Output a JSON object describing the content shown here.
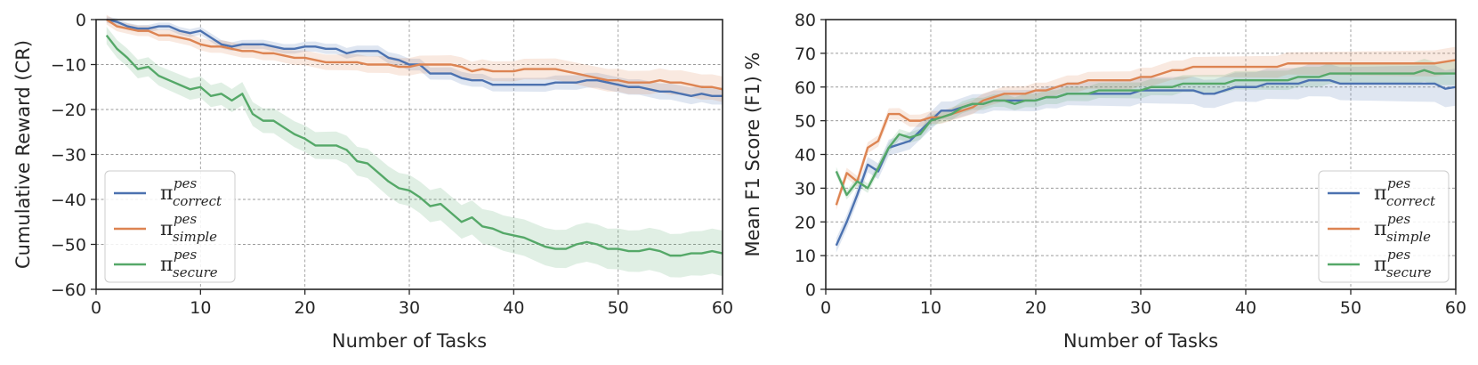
{
  "chart_data": [
    {
      "type": "line",
      "title": "",
      "xlabel": "Number of Tasks",
      "ylabel": "Cumulative Reward (CR)",
      "xlim": [
        0,
        60
      ],
      "ylim": [
        -60,
        0
      ],
      "xticks": [
        "0",
        "10",
        "20",
        "30",
        "40",
        "50",
        "60"
      ],
      "yticks": [
        "0",
        "−10",
        "−20",
        "−30",
        "−40",
        "−50",
        "−60"
      ],
      "grid": true,
      "legend_position": "lower-left",
      "x": [
        1,
        2,
        3,
        4,
        5,
        6,
        7,
        8,
        9,
        10,
        11,
        12,
        13,
        14,
        15,
        16,
        17,
        18,
        19,
        20,
        21,
        22,
        23,
        24,
        25,
        26,
        27,
        28,
        29,
        30,
        31,
        32,
        33,
        34,
        35,
        36,
        37,
        38,
        39,
        40,
        41,
        42,
        43,
        44,
        45,
        46,
        47,
        48,
        49,
        50,
        51,
        52,
        53,
        54,
        55,
        56,
        57,
        58,
        59,
        60
      ],
      "series": [
        {
          "symbol": "π",
          "sup": "pes",
          "sub": "correct",
          "color": "#4c72b0",
          "values": [
            0,
            -0.5,
            -1.5,
            -2,
            -2,
            -1.5,
            -1.5,
            -2.5,
            -3,
            -2.5,
            -4,
            -5.5,
            -6,
            -5.5,
            -5.5,
            -5.5,
            -6,
            -6.5,
            -6.5,
            -6,
            -6,
            -6.5,
            -6.5,
            -7.5,
            -7,
            -7,
            -7,
            -8.5,
            -9,
            -10,
            -10,
            -12,
            -12,
            -12,
            -13,
            -13.5,
            -13.5,
            -14.5,
            -14.5,
            -14.5,
            -14.5,
            -14.5,
            -14.5,
            -14,
            -14,
            -14,
            -13.5,
            -13.5,
            -14,
            -14.5,
            -15,
            -15,
            -15.5,
            -16,
            -16,
            -16.5,
            -17,
            -16.5,
            -17,
            -17
          ]
        },
        {
          "symbol": "π",
          "sup": "pes",
          "sub": "simple",
          "color": "#dd8452",
          "values": [
            0,
            -1.5,
            -2,
            -2.5,
            -2.5,
            -3.5,
            -3.5,
            -4,
            -4.5,
            -5.5,
            -6,
            -6,
            -6.5,
            -7,
            -7,
            -7.5,
            -7.5,
            -8,
            -8.5,
            -8.5,
            -9,
            -9.5,
            -9.5,
            -9.5,
            -9.5,
            -10,
            -10,
            -10,
            -10.5,
            -10.5,
            -10,
            -10,
            -10,
            -10,
            -10.5,
            -11.5,
            -11,
            -11.5,
            -11.5,
            -11.5,
            -11,
            -11,
            -11,
            -11,
            -11.5,
            -12,
            -12.5,
            -13,
            -13.5,
            -13.5,
            -14,
            -14,
            -14,
            -13.5,
            -14,
            -14,
            -14.5,
            -15,
            -15,
            -15.5
          ]
        },
        {
          "symbol": "π",
          "sup": "pes",
          "sub": "secure",
          "color": "#55a868",
          "values": [
            -3.5,
            -6.5,
            -8.5,
            -11,
            -10.5,
            -12.5,
            -13.5,
            -14.5,
            -15.5,
            -15,
            -17,
            -16.5,
            -18,
            -16.5,
            -21,
            -22.5,
            -22.5,
            -24,
            -25.5,
            -26.5,
            -28,
            -28,
            -28,
            -29,
            -31.5,
            -32,
            -34,
            -36,
            -37.5,
            -38,
            -39.5,
            -41.5,
            -41,
            -43,
            -45,
            -44,
            -46,
            -46.5,
            -47.5,
            -48,
            -48.5,
            -49.5,
            -50.5,
            -51,
            -51,
            -50,
            -49.5,
            -50,
            -51,
            -51,
            -51.5,
            -51.5,
            -51,
            -51.5,
            -52.5,
            -52.5,
            -52,
            -52,
            -51.5,
            -52
          ]
        }
      ]
    },
    {
      "type": "line",
      "title": "",
      "xlabel": "Number of Tasks",
      "ylabel": "Mean F1 Score (F1) %",
      "xlim": [
        0,
        60
      ],
      "ylim": [
        0,
        80
      ],
      "xticks": [
        "0",
        "10",
        "20",
        "30",
        "40",
        "50",
        "60"
      ],
      "yticks": [
        "0",
        "10",
        "20",
        "30",
        "40",
        "50",
        "60",
        "70",
        "80"
      ],
      "grid": true,
      "legend_position": "lower-right",
      "x": [
        1,
        2,
        3,
        4,
        5,
        6,
        7,
        8,
        9,
        10,
        11,
        12,
        13,
        14,
        15,
        16,
        17,
        18,
        19,
        20,
        21,
        22,
        23,
        24,
        25,
        26,
        27,
        28,
        29,
        30,
        31,
        32,
        33,
        34,
        35,
        36,
        37,
        38,
        39,
        40,
        41,
        42,
        43,
        44,
        45,
        46,
        47,
        48,
        49,
        50,
        51,
        52,
        53,
        54,
        55,
        56,
        57,
        58,
        59,
        60
      ],
      "series": [
        {
          "symbol": "π",
          "sup": "pes",
          "sub": "correct",
          "color": "#4c72b0",
          "values": [
            13,
            20,
            28,
            37,
            35,
            42,
            43,
            44,
            47,
            50,
            53,
            53,
            54,
            55,
            55,
            56,
            56,
            56,
            56,
            56,
            57,
            57,
            58,
            58,
            58,
            58,
            58,
            58,
            58,
            59,
            59,
            59,
            59,
            59,
            59,
            58,
            58,
            59,
            60,
            60,
            60,
            61,
            61,
            61,
            61,
            62,
            62,
            62,
            61,
            61,
            61,
            61,
            61,
            61,
            61,
            61,
            61,
            61,
            59.5,
            60
          ]
        },
        {
          "symbol": "π",
          "sup": "pes",
          "sub": "simple",
          "color": "#dd8452",
          "values": [
            25,
            34.5,
            32,
            42,
            44,
            52,
            52,
            50,
            50,
            51,
            51,
            52,
            53,
            54,
            56,
            57,
            58,
            58,
            58,
            59,
            59,
            60,
            61,
            61,
            62,
            62,
            62,
            62,
            62,
            63,
            63,
            64,
            65,
            65,
            66,
            66,
            66,
            66,
            66,
            66,
            66,
            66,
            66,
            67,
            67,
            67,
            67,
            67,
            67,
            67,
            67,
            67,
            67,
            67,
            67,
            67,
            67,
            67,
            67.5,
            68
          ]
        },
        {
          "symbol": "π",
          "sup": "pes",
          "sub": "secure",
          "color": "#55a868",
          "values": [
            35,
            28,
            32,
            30,
            36,
            42,
            46,
            45,
            46,
            50,
            51,
            52,
            54,
            55,
            55,
            56,
            56,
            55,
            56,
            56,
            57,
            57,
            58,
            58,
            58,
            59,
            59,
            59,
            59,
            59,
            60,
            60,
            60,
            61,
            61,
            61,
            61,
            61,
            62,
            62,
            62,
            62,
            62,
            62,
            63,
            63,
            63,
            64,
            64,
            64,
            64,
            64,
            64,
            64,
            64,
            64,
            65,
            64,
            64,
            64
          ]
        }
      ]
    }
  ]
}
